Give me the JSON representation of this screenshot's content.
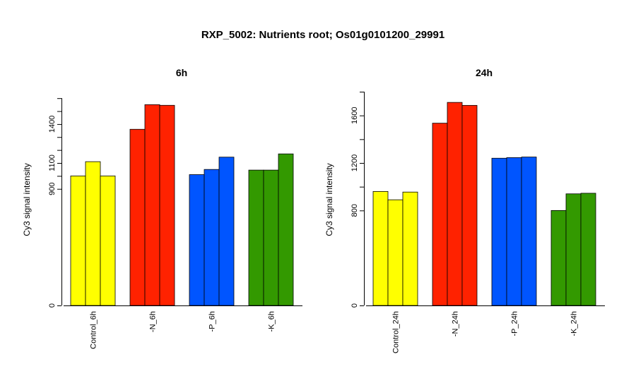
{
  "main_title": "RXP_5002: Nutrients root; Os01g0101200_29991",
  "chart_data": [
    {
      "type": "bar",
      "title": "6h",
      "ylabel": "Cy3 signal intensity",
      "ylim": [
        0,
        1650
      ],
      "y_ticks": [
        0,
        900,
        1100,
        1400
      ],
      "y_ticks_all": [
        0,
        900,
        1000,
        1100,
        1200,
        1300,
        1400,
        1500,
        1600
      ],
      "categories": [
        "Control_6h",
        "-N_6h",
        "-P_6h",
        "-K_6h"
      ],
      "colors": [
        "#ffff00",
        "#ff2200",
        "#0055ff",
        "#339900"
      ],
      "values": [
        [
          1000,
          1110,
          1000
        ],
        [
          1360,
          1550,
          1545
        ],
        [
          1010,
          1050,
          1145
        ],
        [
          1045,
          1045,
          1170
        ]
      ]
    },
    {
      "type": "bar",
      "title": "24h",
      "ylabel": "Cy3 signal intensity",
      "ylim": [
        0,
        1800
      ],
      "y_ticks": [
        0,
        800,
        1200,
        1600
      ],
      "y_ticks_all": [
        0,
        800,
        1000,
        1200,
        1400,
        1600,
        1800
      ],
      "categories": [
        "Control_24h",
        "-N_24h",
        "-P_24h",
        "-K_24h"
      ],
      "colors": [
        "#ffff00",
        "#ff2200",
        "#0055ff",
        "#339900"
      ],
      "values": [
        [
          960,
          890,
          955
        ],
        [
          1535,
          1710,
          1685
        ],
        [
          1240,
          1245,
          1250
        ],
        [
          800,
          940,
          945
        ]
      ]
    }
  ]
}
